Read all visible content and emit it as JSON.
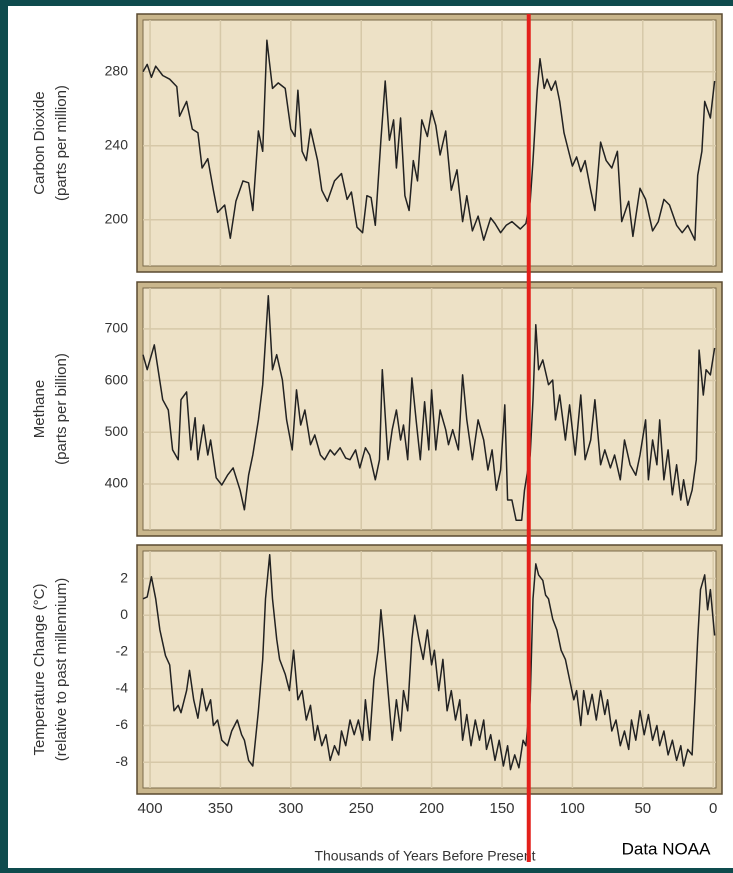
{
  "chart_data": [
    {
      "type": "line",
      "ylabel": [
        "Carbon Dioxide",
        "(parts per million)"
      ],
      "color": "#222222",
      "grid": true,
      "xlim": [
        405,
        -2
      ],
      "ylim": [
        175,
        308
      ],
      "yticks": [
        200,
        240,
        280
      ],
      "x": [
        405,
        402,
        399,
        396,
        391,
        386,
        381,
        379,
        374,
        370,
        366,
        363,
        359,
        355,
        352,
        347,
        343,
        339,
        334,
        330,
        327,
        323,
        320,
        317,
        313,
        309,
        304,
        300,
        297,
        295,
        292,
        289,
        286,
        281,
        278,
        274,
        269,
        264,
        260,
        257,
        253,
        249,
        246,
        243,
        240,
        236,
        233,
        230,
        227,
        225,
        222,
        219,
        216,
        213,
        210,
        207,
        203,
        200,
        197,
        194,
        190,
        186,
        182,
        178,
        175,
        171,
        167,
        163,
        158,
        155,
        151,
        147,
        143,
        137,
        133,
        130,
        128,
        125,
        123,
        120,
        118,
        115,
        112,
        109,
        106,
        103,
        100,
        97,
        94,
        91,
        87,
        84,
        80,
        76,
        72,
        68,
        65,
        60,
        57,
        52,
        48,
        43,
        39,
        35,
        31,
        26,
        22,
        18,
        13,
        11,
        8,
        6,
        2,
        -1
      ],
      "values": [
        280,
        284,
        277,
        283,
        278,
        276,
        272,
        256,
        264,
        249,
        247,
        228,
        233,
        216,
        204,
        208,
        190,
        210,
        221,
        220,
        205,
        248,
        237,
        297,
        271,
        274,
        271,
        249,
        245,
        270,
        237,
        232,
        249,
        232,
        216,
        210,
        221,
        225,
        211,
        215,
        196,
        193,
        213,
        212,
        197,
        243,
        275,
        243,
        254,
        228,
        255,
        213,
        205,
        232,
        221,
        254,
        245,
        259,
        251,
        235,
        248,
        216,
        227,
        199,
        213,
        194,
        202,
        189,
        201,
        198,
        193,
        197,
        199,
        195,
        198,
        210,
        232,
        270,
        287,
        271,
        276,
        270,
        275,
        264,
        247,
        238,
        229,
        234,
        226,
        232,
        216,
        205,
        242,
        232,
        228,
        237,
        199,
        210,
        191,
        217,
        211,
        194,
        199,
        211,
        208,
        197,
        193,
        197,
        189,
        224,
        237,
        264,
        255,
        275
      ]
    },
    {
      "type": "line",
      "ylabel": [
        "Methane",
        "(parts per billion)"
      ],
      "color": "#222222",
      "grid": true,
      "xlim": [
        405,
        -2
      ],
      "ylim": [
        311,
        779
      ],
      "yticks": [
        400,
        500,
        600,
        700
      ],
      "x": [
        405,
        402,
        397,
        391,
        387,
        384,
        380,
        378,
        374,
        371,
        368,
        366,
        362,
        359,
        357,
        353,
        349,
        345,
        341,
        336,
        333,
        330,
        327,
        323,
        320,
        316,
        313,
        310,
        306,
        303,
        299,
        296,
        293,
        290,
        286,
        283,
        279,
        276,
        272,
        269,
        265,
        261,
        258,
        254,
        251,
        247,
        244,
        240,
        237,
        235,
        231,
        228,
        225,
        222,
        220,
        217,
        214,
        211,
        208,
        205,
        202,
        200,
        197,
        194,
        190,
        188,
        185,
        181,
        178,
        175,
        171,
        167,
        163,
        160,
        157,
        154,
        151,
        148,
        146,
        143,
        140,
        136,
        134,
        130,
        128,
        126,
        124,
        121,
        117,
        114,
        112,
        109,
        105,
        102,
        98,
        94,
        91,
        87,
        84,
        80,
        77,
        73,
        70,
        66,
        63,
        59,
        55,
        52,
        48,
        46,
        43,
        40,
        38,
        35,
        32,
        29,
        26,
        23,
        21,
        18,
        15,
        12,
        10,
        7,
        5,
        2,
        -1
      ],
      "values": [
        650,
        621,
        669,
        563,
        543,
        466,
        447,
        563,
        578,
        466,
        528,
        447,
        514,
        456,
        485,
        412,
        398,
        417,
        431,
        388,
        350,
        417,
        456,
        524,
        592,
        764,
        621,
        650,
        601,
        524,
        466,
        582,
        514,
        543,
        476,
        495,
        456,
        447,
        466,
        456,
        470,
        450,
        447,
        466,
        431,
        470,
        456,
        408,
        447,
        621,
        447,
        505,
        543,
        485,
        514,
        447,
        605,
        524,
        447,
        559,
        466,
        582,
        466,
        543,
        505,
        476,
        505,
        466,
        611,
        524,
        447,
        524,
        485,
        427,
        466,
        388,
        427,
        553,
        369,
        369,
        330,
        330,
        388,
        456,
        563,
        708,
        621,
        640,
        592,
        601,
        524,
        572,
        485,
        553,
        456,
        572,
        447,
        485,
        563,
        437,
        466,
        431,
        456,
        408,
        485,
        437,
        417,
        456,
        524,
        408,
        485,
        437,
        524,
        408,
        466,
        379,
        437,
        369,
        408,
        359,
        388,
        447,
        659,
        572,
        621,
        611,
        663
      ]
    },
    {
      "type": "line",
      "ylabel": [
        "Temperature Change (°C)",
        "(relative to past millennium)"
      ],
      "xlabel": "Thousands of Years Before Present",
      "color": "#222222",
      "grid": true,
      "xlim": [
        405,
        -2
      ],
      "ylim": [
        -9.4,
        3.5
      ],
      "yticks": [
        -8,
        -6,
        -4,
        -2,
        0,
        2
      ],
      "xticks": [
        400,
        350,
        300,
        250,
        200,
        150,
        100,
        50,
        0
      ],
      "x": [
        405,
        402,
        399,
        396,
        393,
        389,
        386,
        383,
        380,
        378,
        374,
        372,
        369,
        366,
        363,
        360,
        357,
        355,
        352,
        349,
        345,
        342,
        338,
        335,
        333,
        330,
        327,
        323,
        320,
        318,
        315,
        313,
        310,
        308,
        304,
        301,
        298,
        295,
        292,
        289,
        286,
        283,
        281,
        278,
        275,
        272,
        269,
        266,
        264,
        261,
        258,
        255,
        252,
        249,
        247,
        244,
        241,
        238,
        236,
        234,
        231,
        228,
        225,
        222,
        220,
        217,
        214,
        212,
        209,
        206,
        203,
        200,
        198,
        195,
        192,
        189,
        186,
        183,
        180,
        178,
        175,
        172,
        169,
        166,
        163,
        161,
        158,
        155,
        152,
        149,
        146,
        144,
        141,
        138,
        135,
        133,
        130,
        128,
        126,
        124,
        121,
        119,
        117,
        114,
        111,
        108,
        105,
        102,
        99,
        97,
        94,
        92,
        89,
        86,
        83,
        80,
        77,
        75,
        72,
        69,
        66,
        63,
        60,
        58,
        55,
        52,
        49,
        46,
        43,
        40,
        38,
        35,
        32,
        29,
        26,
        23,
        21,
        18,
        15,
        13,
        11,
        9,
        6,
        4,
        2,
        -1
      ],
      "values": [
        0.9,
        1.0,
        2.1,
        0.9,
        -0.8,
        -2.2,
        -2.7,
        -5.2,
        -4.9,
        -5.3,
        -4.1,
        -3.0,
        -4.6,
        -5.6,
        -4.0,
        -5.2,
        -4.6,
        -6.0,
        -5.7,
        -6.8,
        -7.1,
        -6.3,
        -5.7,
        -6.5,
        -6.8,
        -7.9,
        -8.2,
        -5.2,
        -2.4,
        0.9,
        3.3,
        0.9,
        -1.3,
        -2.4,
        -3.2,
        -4.1,
        -1.9,
        -4.6,
        -4.1,
        -5.7,
        -4.9,
        -6.8,
        -6.0,
        -7.1,
        -6.5,
        -7.9,
        -7.1,
        -7.6,
        -6.3,
        -7.1,
        -5.7,
        -6.5,
        -5.7,
        -6.8,
        -4.6,
        -6.8,
        -3.5,
        -1.9,
        0.3,
        -1.3,
        -4.1,
        -6.8,
        -4.6,
        -6.3,
        -4.1,
        -5.2,
        -1.3,
        0.0,
        -1.3,
        -2.4,
        -0.8,
        -2.7,
        -1.9,
        -4.1,
        -2.4,
        -5.2,
        -4.1,
        -5.7,
        -4.6,
        -6.8,
        -5.4,
        -7.1,
        -5.7,
        -6.8,
        -5.7,
        -7.3,
        -6.5,
        -7.9,
        -6.8,
        -8.2,
        -7.1,
        -8.4,
        -7.6,
        -8.3,
        -6.8,
        -7.1,
        -4.6,
        0.9,
        2.8,
        2.2,
        1.9,
        1.1,
        0.9,
        -0.2,
        -0.8,
        -1.9,
        -2.4,
        -3.5,
        -4.6,
        -4.1,
        -6.0,
        -4.1,
        -5.4,
        -4.3,
        -5.7,
        -4.1,
        -5.4,
        -4.6,
        -6.3,
        -5.7,
        -7.1,
        -6.3,
        -7.3,
        -5.7,
        -6.8,
        -5.2,
        -6.5,
        -5.4,
        -6.8,
        -6.0,
        -7.1,
        -6.3,
        -7.6,
        -6.8,
        -7.9,
        -7.1,
        -8.2,
        -7.3,
        -7.6,
        -4.6,
        -1.3,
        1.4,
        2.2,
        0.3,
        1.4,
        -1.1
      ]
    }
  ],
  "marker_line": {
    "x": 131,
    "color": "#e3201b"
  },
  "source": "Data NOAA"
}
